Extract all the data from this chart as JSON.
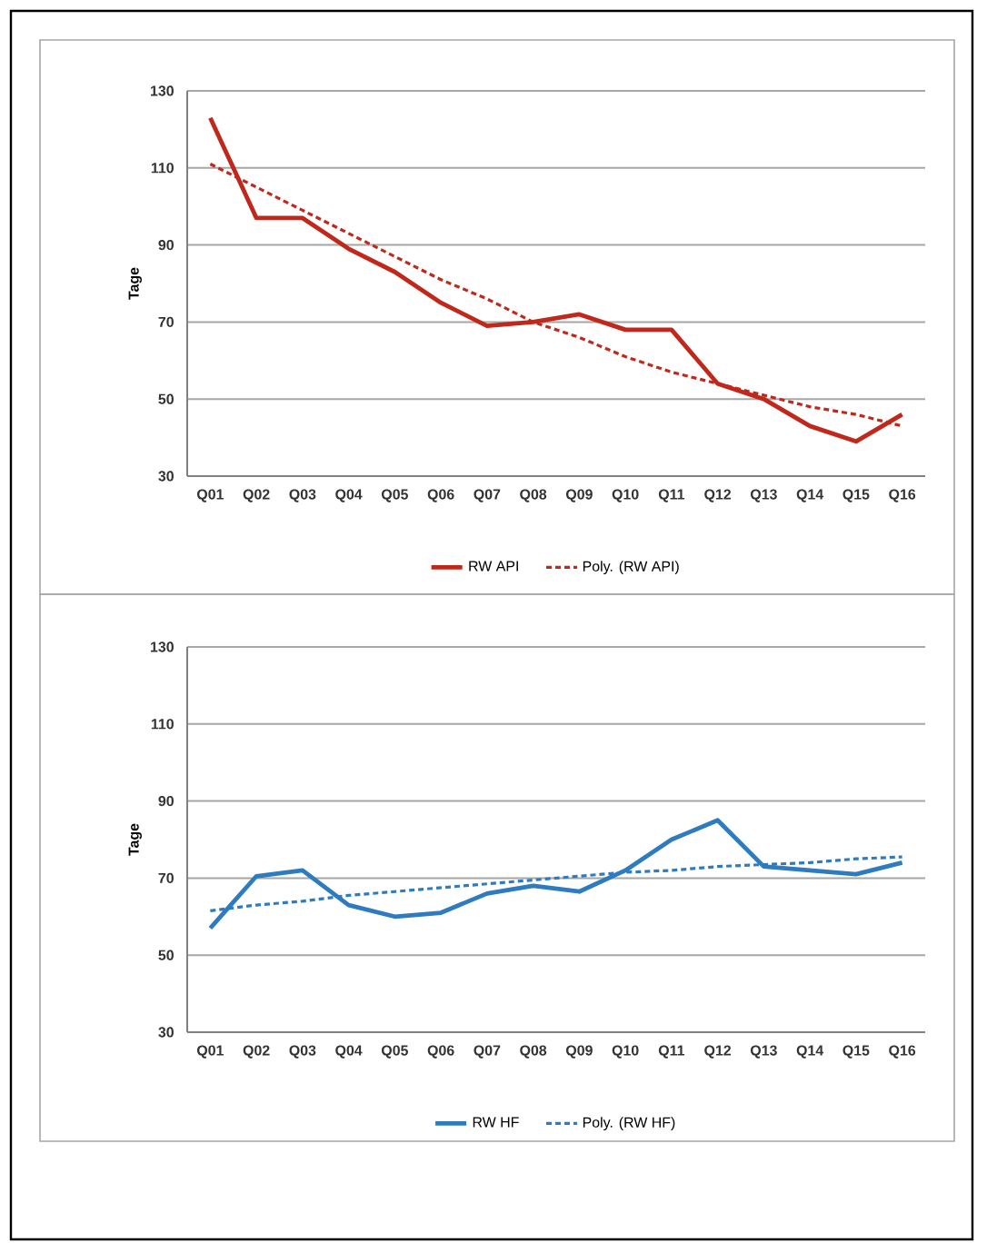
{
  "chart_data": [
    {
      "type": "line",
      "ylabel": "Tage",
      "categories": [
        "Q01",
        "Q02",
        "Q03",
        "Q04",
        "Q05",
        "Q06",
        "Q07",
        "Q08",
        "Q09",
        "Q10",
        "Q11",
        "Q12",
        "Q13",
        "Q14",
        "Q15",
        "Q16"
      ],
      "series": [
        {
          "name": "RW API",
          "color": "#c0281c",
          "line_style": "solid",
          "values": [
            123,
            97,
            97,
            89,
            83,
            75,
            69,
            70,
            72,
            68,
            68,
            54,
            50,
            43,
            39,
            46
          ]
        },
        {
          "name": "Poly. (RW API)",
          "color": "#c0281c",
          "line_style": "dashed",
          "values": [
            111,
            105,
            99,
            93,
            87,
            81,
            76,
            70,
            66,
            61,
            57,
            54,
            51,
            48,
            46,
            43
          ]
        }
      ],
      "ylim": [
        30,
        130
      ],
      "yticks": [
        30,
        50,
        70,
        90,
        110,
        130
      ],
      "grid": "y",
      "legend": "bottom",
      "marker": "none"
    },
    {
      "type": "line",
      "ylabel": "Tage",
      "categories": [
        "Q01",
        "Q02",
        "Q03",
        "Q04",
        "Q05",
        "Q06",
        "Q07",
        "Q08",
        "Q09",
        "Q10",
        "Q11",
        "Q12",
        "Q13",
        "Q14",
        "Q15",
        "Q16"
      ],
      "series": [
        {
          "name": "RW HF",
          "color": "#2e7bbf",
          "line_style": "solid",
          "values": [
            57,
            70.5,
            72,
            63,
            60,
            61,
            66,
            68,
            66.5,
            72,
            80,
            85,
            73,
            72,
            71,
            74
          ]
        },
        {
          "name": "Poly. (RW  HF)",
          "color": "#2e7bbf",
          "line_style": "dashed",
          "values": [
            61.5,
            63,
            64,
            65.5,
            66.5,
            67.5,
            68.5,
            69.5,
            70.5,
            71.5,
            72,
            73,
            73.5,
            74,
            75,
            75.5
          ]
        }
      ],
      "ylim": [
        30,
        130
      ],
      "yticks": [
        30,
        50,
        70,
        90,
        110,
        130
      ],
      "grid": "y",
      "legend": "bottom",
      "marker": "none"
    }
  ]
}
